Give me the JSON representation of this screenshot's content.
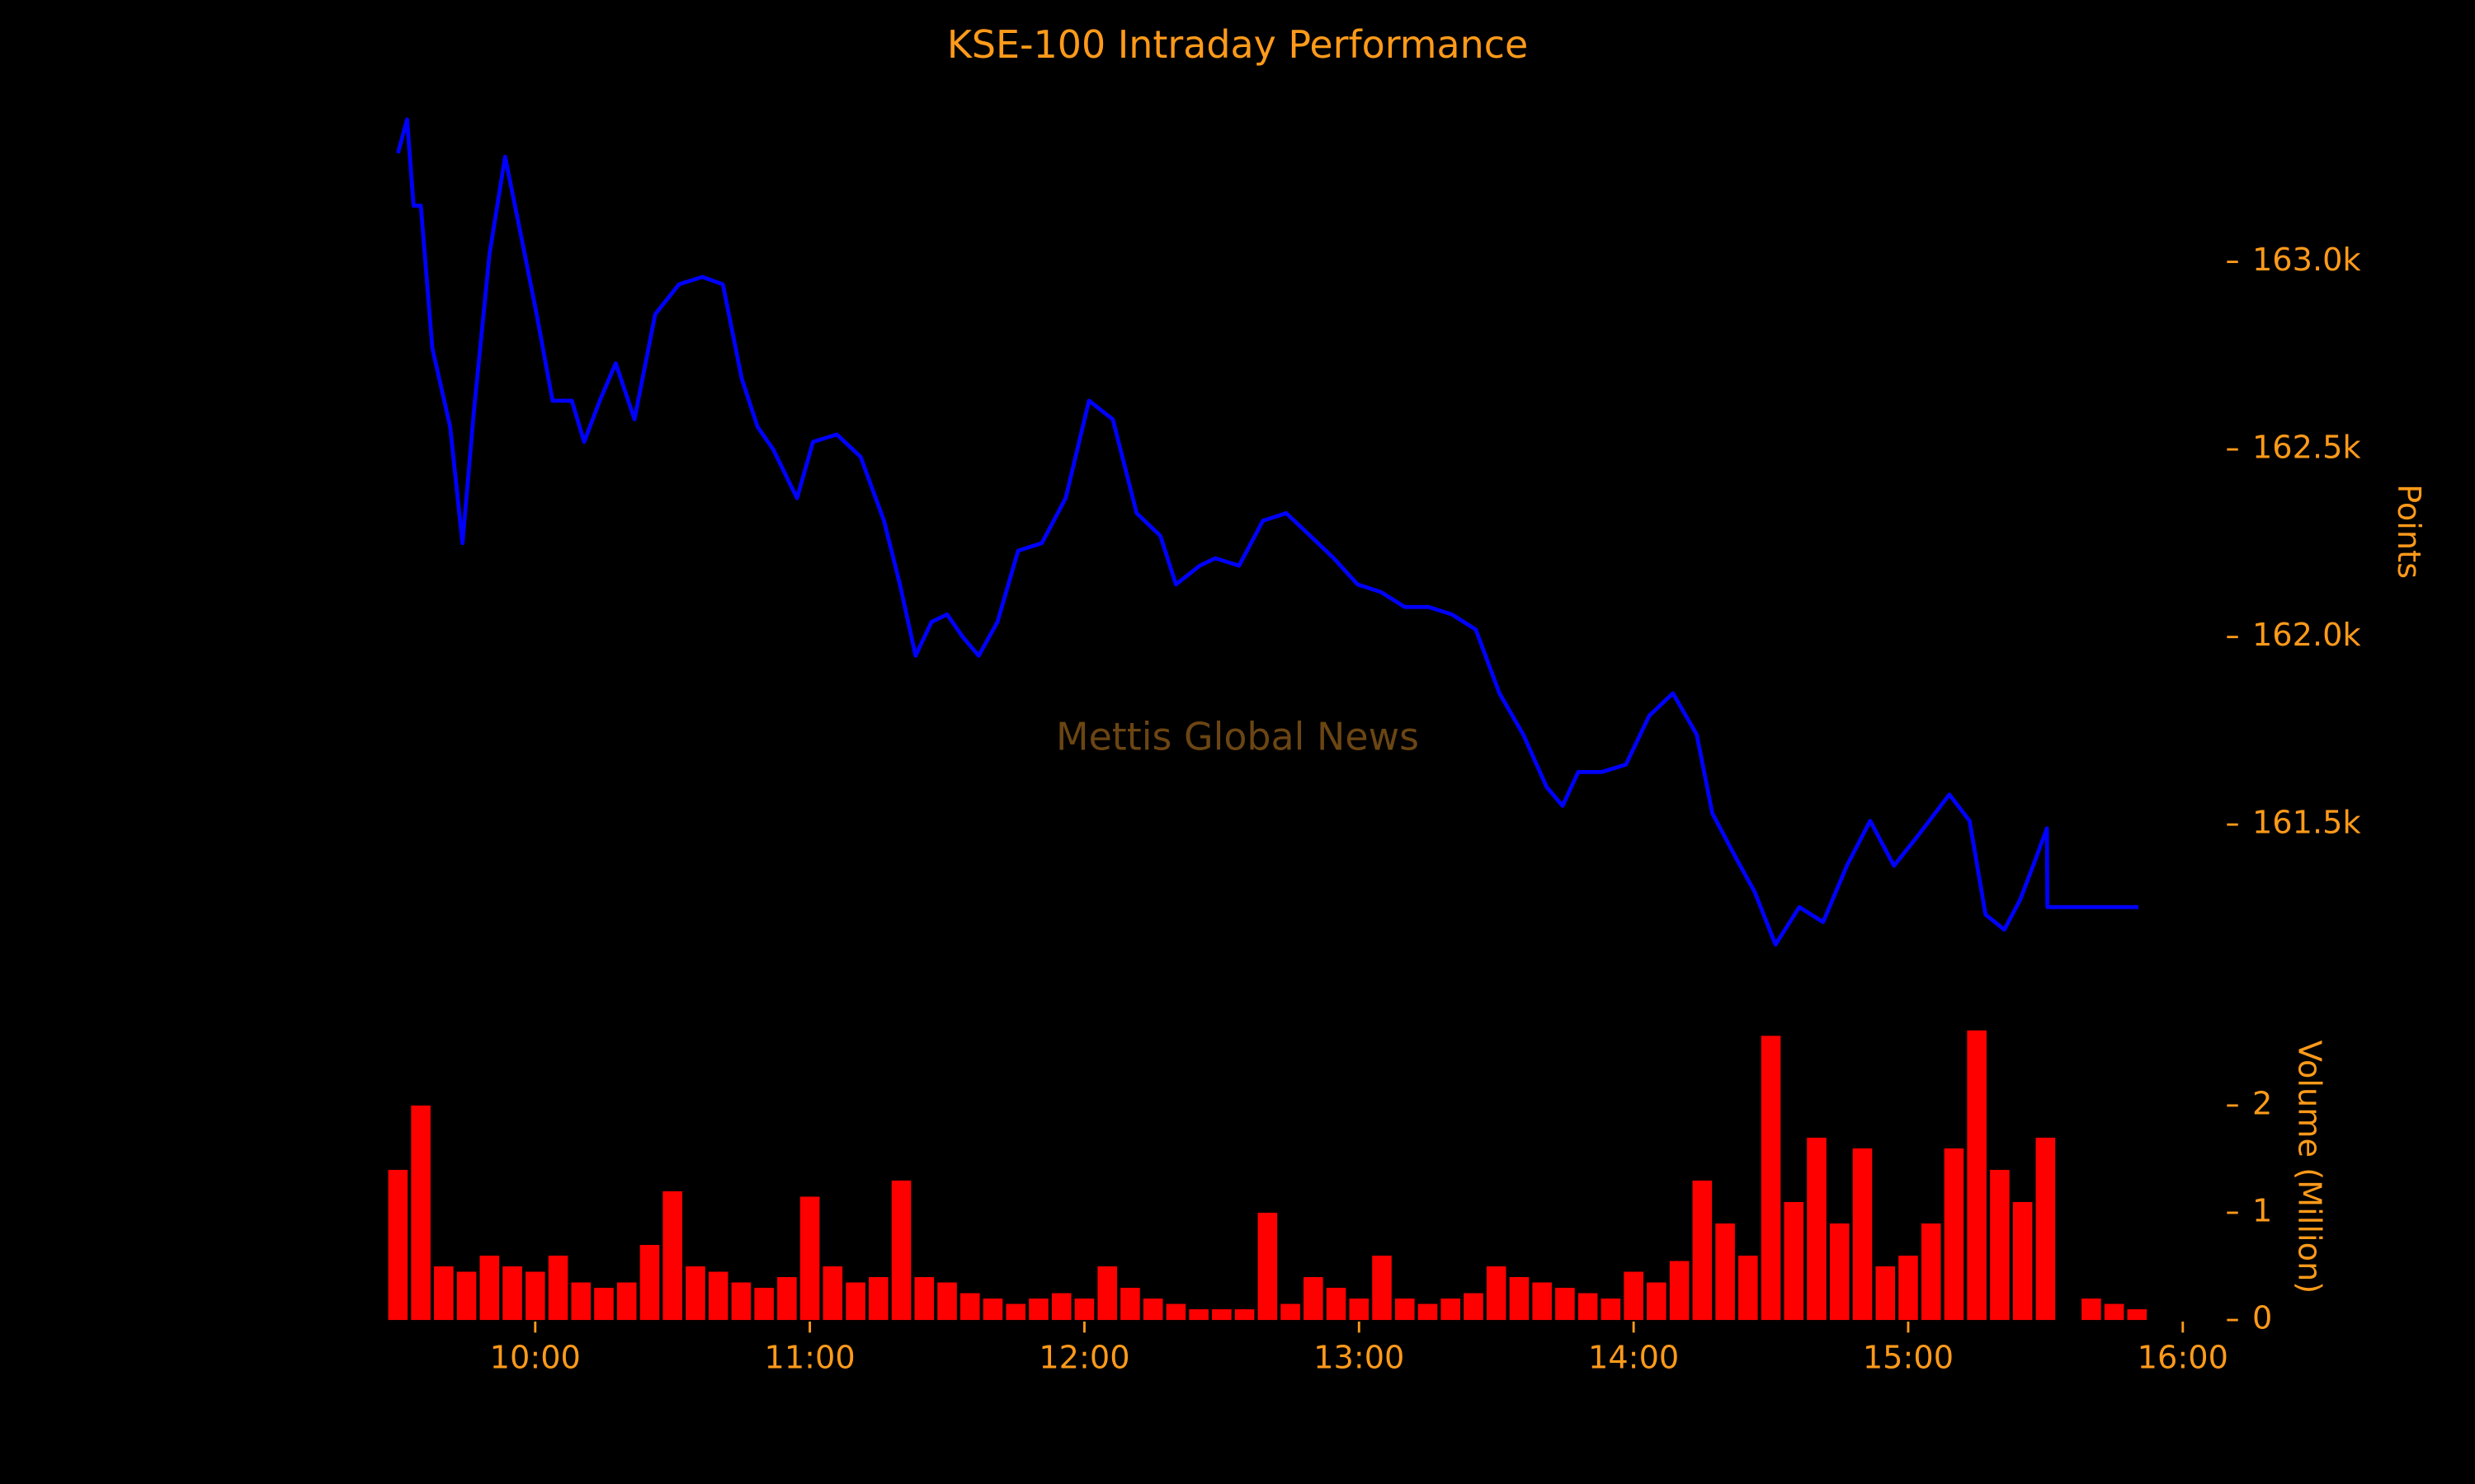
{
  "chart_data": [
    {
      "type": "line",
      "title": "KSE-100 Intraday Performance",
      "ylabel": "Points",
      "annotation": "Mettis Global News",
      "color": "#0000ff",
      "x": [
        570,
        572,
        573.4,
        575,
        577.5,
        581.4,
        584.1,
        586.6,
        590,
        593.4,
        596.9,
        600.3,
        603.8,
        608,
        610.7,
        614.1,
        617.6,
        621.7,
        626.2,
        631.4,
        636.5,
        641,
        645.1,
        648.6,
        652,
        657.2,
        660.7,
        665.9,
        671.1,
        676.2,
        679.7,
        683.1,
        686.6,
        690,
        693.4,
        696.9,
        701,
        705.5,
        710.7,
        715.9,
        721,
        726.2,
        731.4,
        736.6,
        740,
        745.2,
        748.6,
        753.8,
        759,
        764.1,
        769.3,
        774.5,
        779.7,
        784.8,
        790,
        795.2,
        800.3,
        805.5,
        810.7,
        815.9,
        821,
        824.5,
        827.9,
        833.1,
        838.3,
        843.4,
        848.6,
        853.8,
        857.2,
        862.4,
        866.5,
        871,
        876.2,
        881.4,
        886.6,
        891.7,
        896.9,
        902.1,
        909,
        913.4,
        916.9,
        921,
        924.5,
        927.9,
        930.3,
        930.4,
        950.3
      ],
      "values": [
        163290,
        163380,
        163150,
        163150,
        162770,
        162560,
        162250,
        162600,
        163020,
        163280,
        163070,
        162860,
        162630,
        162630,
        162520,
        162630,
        162730,
        162580,
        162860,
        162940,
        162960,
        162940,
        162690,
        162560,
        162500,
        162370,
        162520,
        162540,
        162480,
        162310,
        162140,
        161950,
        162040,
        162060,
        162000,
        161950,
        162040,
        162230,
        162250,
        162370,
        162630,
        162580,
        162330,
        162270,
        162140,
        162190,
        162210,
        162190,
        162310,
        162330,
        162270,
        162210,
        162140,
        162120,
        162080,
        162080,
        162060,
        162020,
        161850,
        161740,
        161600,
        161550,
        161640,
        161640,
        161660,
        161790,
        161850,
        161740,
        161530,
        161410,
        161320,
        161180,
        161280,
        161240,
        161390,
        161510,
        161390,
        161470,
        161580,
        161510,
        161260,
        161220,
        161300,
        161410,
        161490,
        161280,
        161280
      ],
      "xlim": [
        560,
        960
      ],
      "ylim": [
        161100,
        163450
      ],
      "yticks": [
        {
          "value": 161500,
          "label": "161.5k"
        },
        {
          "value": 162000,
          "label": "162.0k"
        },
        {
          "value": 162500,
          "label": "162.5k"
        },
        {
          "value": 163000,
          "label": "163.0k"
        }
      ]
    },
    {
      "type": "bar",
      "ylabel": "Volume (Million)",
      "color": "#ff0000",
      "x": [
        570,
        575,
        580,
        585,
        590,
        595,
        600,
        605,
        610,
        615,
        620,
        625,
        630,
        635,
        640,
        645,
        650,
        655,
        660,
        665,
        670,
        675,
        680,
        685,
        690,
        695,
        700,
        705,
        710,
        715,
        720,
        725,
        730,
        735,
        740,
        745,
        750,
        755,
        760,
        765,
        770,
        775,
        780,
        785,
        790,
        795,
        800,
        805,
        810,
        815,
        820,
        825,
        830,
        835,
        840,
        845,
        850,
        855,
        860,
        865,
        870,
        875,
        880,
        885,
        890,
        895,
        900,
        905,
        910,
        915,
        920,
        925,
        930,
        940,
        945,
        950
      ],
      "values": [
        1.4,
        2.0,
        0.5,
        0.45,
        0.6,
        0.5,
        0.45,
        0.6,
        0.35,
        0.3,
        0.35,
        0.7,
        1.2,
        0.5,
        0.45,
        0.35,
        0.3,
        0.4,
        1.15,
        0.5,
        0.35,
        0.4,
        1.3,
        0.4,
        0.35,
        0.25,
        0.2,
        0.15,
        0.2,
        0.25,
        0.2,
        0.5,
        0.3,
        0.2,
        0.15,
        0.1,
        0.1,
        0.1,
        1.0,
        0.15,
        0.4,
        0.3,
        0.2,
        0.6,
        0.2,
        0.15,
        0.2,
        0.25,
        0.5,
        0.4,
        0.35,
        0.3,
        0.25,
        0.2,
        0.45,
        0.35,
        0.55,
        1.3,
        0.9,
        0.6,
        2.65,
        1.1,
        1.7,
        0.9,
        1.6,
        0.5,
        0.6,
        0.9,
        1.6,
        2.7,
        1.4,
        1.1,
        1.7,
        0.2,
        0.15,
        0.1
      ],
      "xlim": [
        560,
        960
      ],
      "ylim": [
        0,
        2.75
      ],
      "yticks": [
        0,
        1,
        2
      ],
      "xticks": [
        {
          "value": 600,
          "label": "10:00"
        },
        {
          "value": 660,
          "label": "11:00"
        },
        {
          "value": 720,
          "label": "12:00"
        },
        {
          "value": 780,
          "label": "13:00"
        },
        {
          "value": 840,
          "label": "14:00"
        },
        {
          "value": 900,
          "label": "15:00"
        },
        {
          "value": 960,
          "label": "16:00"
        }
      ]
    }
  ]
}
